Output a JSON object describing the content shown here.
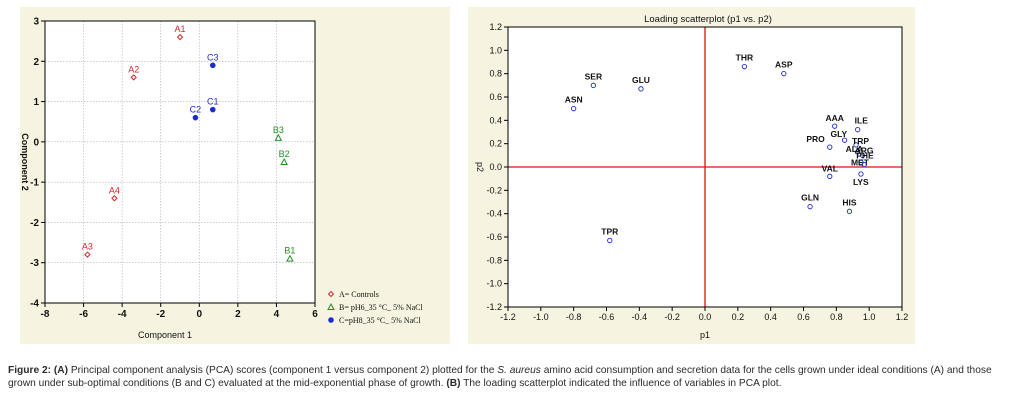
{
  "chart_data": [
    {
      "type": "scatter",
      "title": "",
      "xlabel": "Component 1",
      "ylabel": "Component 2",
      "xlim": [
        -8,
        6
      ],
      "ylim": [
        -4,
        3
      ],
      "xticks": [
        "-8",
        "-6",
        "-4",
        "-2",
        "0",
        "2",
        "4",
        "6"
      ],
      "yticks": [
        "-4",
        "-3",
        "-2",
        "-1",
        "0",
        "1",
        "2",
        "3"
      ],
      "grid": true,
      "legend_position": "bottom-right, outside plot",
      "series": [
        {
          "name": "A= Controls",
          "color": "#d42a2a",
          "marker": "diamond",
          "points": [
            {
              "label": "A1",
              "x": -1.0,
              "y": 2.6
            },
            {
              "label": "A2",
              "x": -3.4,
              "y": 1.6
            },
            {
              "label": "A3",
              "x": -5.8,
              "y": -2.8
            },
            {
              "label": "A4",
              "x": -4.4,
              "y": -1.4
            }
          ]
        },
        {
          "name": "B= pH6_35 °C_ 5% NaCl",
          "color": "#2a8a2a",
          "marker": "triangle",
          "points": [
            {
              "label": "B1",
              "x": 4.7,
              "y": -2.9
            },
            {
              "label": "B2",
              "x": 4.4,
              "y": -0.5
            },
            {
              "label": "B3",
              "x": 4.1,
              "y": 0.1
            }
          ]
        },
        {
          "name": "C=pH8_35 °C_ 5% NaCl",
          "color": "#1c2ccc",
          "marker": "dot",
          "points": [
            {
              "label": "C1",
              "x": 0.7,
              "y": 0.8
            },
            {
              "label": "C2",
              "x": -0.2,
              "y": 0.6
            },
            {
              "label": "C3",
              "x": 0.7,
              "y": 1.9
            }
          ]
        }
      ]
    },
    {
      "type": "scatter",
      "title": "Loading scatterplot (p1 vs. p2)",
      "xlabel": "p1",
      "ylabel": "p2",
      "xlim": [
        -1.2,
        1.2
      ],
      "ylim": [
        -1.2,
        1.2
      ],
      "xticks": [
        "-1.2",
        "-1.0",
        "-0.8",
        "-0.6",
        "-0.4",
        "-0.2",
        "0.0",
        "0.2",
        "0.4",
        "0.6",
        "0.8",
        "1.0",
        "1.2"
      ],
      "yticks": [
        "-1.2",
        "-1.0",
        "-0.8",
        "-0.6",
        "-0.4",
        "-0.2",
        "0.0",
        "0.2",
        "0.4",
        "0.6",
        "0.8",
        "1.0",
        "1.2"
      ],
      "grid": false,
      "reference_lines": {
        "x": 0,
        "y": 0,
        "color": "#e01010"
      },
      "point_color": "#1c2ccc",
      "points": [
        {
          "label": "THR",
          "x": 0.24,
          "y": 0.86
        },
        {
          "label": "ASP",
          "x": 0.48,
          "y": 0.8
        },
        {
          "label": "SER",
          "x": -0.68,
          "y": 0.7
        },
        {
          "label": "GLU",
          "x": -0.39,
          "y": 0.67
        },
        {
          "label": "ASN",
          "x": -0.8,
          "y": 0.5
        },
        {
          "label": "AAA",
          "x": 0.79,
          "y": 0.35
        },
        {
          "label": "ILE",
          "x": 0.93,
          "y": 0.32
        },
        {
          "label": "GLY",
          "x": 0.85,
          "y": 0.23
        },
        {
          "label": "TRP",
          "x": 0.92,
          "y": 0.19
        },
        {
          "label": "PRO",
          "x": 0.76,
          "y": 0.17
        },
        {
          "label": "ALA",
          "x": 0.93,
          "y": 0.13
        },
        {
          "label": "ARG",
          "x": 0.96,
          "y": 0.1
        },
        {
          "label": "MET",
          "x": 0.95,
          "y": 0.04
        },
        {
          "label": "PHE",
          "x": 0.97,
          "y": 0.02
        },
        {
          "label": "VAL",
          "x": 0.76,
          "y": -0.08
        },
        {
          "label": "LYS",
          "x": 0.95,
          "y": -0.06
        },
        {
          "label": "HIS",
          "x": 0.88,
          "y": -0.38
        },
        {
          "label": "GLN",
          "x": 0.64,
          "y": -0.34
        },
        {
          "label": "TPR",
          "x": -0.58,
          "y": -0.63
        }
      ]
    }
  ],
  "caption": {
    "figure_label": "Figure 2:",
    "panel_a": "(A)",
    "text_1": " Principal component analysis (PCA) scores (component 1 versus component 2) plotted for the ",
    "organism": "S. aureus",
    "text_2": " amino acid consumption and secretion data for the cells grown under ideal conditions (A) and those grown under sub-optimal conditions (B and C) evaluated at the mid-exponential phase of growth. ",
    "panel_b": "(B)",
    "text_3": " The loading scatterplot indicated the influence of variables in PCA plot."
  }
}
